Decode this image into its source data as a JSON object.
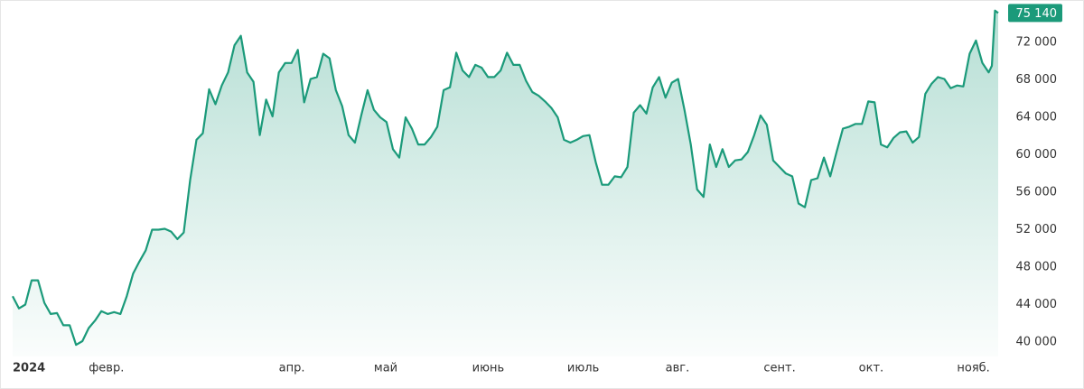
{
  "chart_data": {
    "type": "line",
    "color": "#1b9a7a",
    "fill": true,
    "grid": false,
    "x": [
      7,
      9,
      11,
      13,
      15,
      17,
      19,
      21,
      23,
      25,
      27,
      29,
      31,
      33,
      35,
      37,
      39,
      41,
      43,
      45,
      47,
      49,
      51,
      53,
      55,
      57,
      59,
      61,
      63,
      65,
      67,
      69,
      71,
      73,
      75,
      77,
      79,
      81,
      83,
      85,
      87,
      89,
      91,
      93,
      95,
      97,
      99,
      101,
      103,
      105,
      107,
      109,
      111,
      113,
      115,
      117,
      119,
      121,
      123,
      125,
      127,
      129,
      131,
      133,
      135,
      137,
      139,
      141,
      143,
      145,
      147,
      149,
      151,
      153,
      155,
      157,
      159,
      161,
      163,
      165,
      167,
      169,
      171,
      173,
      175,
      177,
      179,
      181,
      183,
      185,
      187,
      189,
      191,
      193,
      195,
      197,
      199,
      201,
      203,
      205,
      207,
      209,
      211,
      213,
      215,
      217,
      219,
      221,
      223,
      225,
      227,
      229,
      231,
      233,
      235,
      237,
      239,
      241,
      243,
      245,
      247,
      249,
      251,
      253,
      255,
      257,
      259,
      261,
      263,
      265,
      267,
      269,
      271,
      273,
      275,
      277,
      279,
      281,
      283,
      285,
      287,
      289,
      291,
      293,
      295,
      297,
      299,
      301,
      303,
      305,
      307,
      309,
      311,
      313,
      315,
      316,
      317,
      318
    ],
    "values": [
      44900,
      43600,
      44000,
      46600,
      46600,
      44200,
      43000,
      43100,
      41800,
      41800,
      39700,
      40100,
      41500,
      42300,
      43300,
      43000,
      43200,
      43000,
      44900,
      47300,
      48600,
      49800,
      52000,
      52000,
      52100,
      51800,
      51000,
      51700,
      57300,
      61600,
      62300,
      67000,
      65400,
      67400,
      68800,
      71700,
      72700,
      68800,
      67800,
      62100,
      65900,
      64100,
      68800,
      69800,
      69800,
      71200,
      65600,
      68100,
      68300,
      70800,
      70300,
      66900,
      65200,
      62100,
      61300,
      64200,
      66900,
      64800,
      64000,
      63500,
      60600,
      59700,
      64000,
      62800,
      61100,
      61100,
      61900,
      63000,
      66900,
      67200,
      70900,
      69000,
      68300,
      69600,
      69300,
      68300,
      68300,
      69000,
      70900,
      69600,
      69600,
      67900,
      66700,
      66300,
      65700,
      65000,
      64000,
      61600,
      61300,
      61600,
      62000,
      62100,
      59200,
      56800,
      56800,
      57700,
      57600,
      58700,
      64500,
      65300,
      64400,
      67200,
      68300,
      66100,
      67700,
      68100,
      64800,
      61100,
      56300,
      55500,
      61100,
      58700,
      60600,
      58700,
      59400,
      59500,
      60300,
      62100,
      64200,
      63200,
      59400,
      58700,
      58000,
      57700,
      54800,
      54400,
      57300,
      57500,
      59700,
      57700,
      60300,
      62800,
      63000,
      63300,
      63300,
      65700,
      65600,
      61100,
      60800,
      61800,
      62400,
      62500,
      61300,
      61900,
      66500,
      67600,
      68300,
      68100,
      67100,
      67400,
      67300,
      70800,
      72200,
      69800,
      68800,
      69500,
      75400,
      75140
    ],
    "value_labels": [
      null,
      null,
      null,
      null,
      null,
      null,
      null,
      null,
      null,
      null,
      null,
      null,
      null,
      null,
      null,
      null,
      null,
      null,
      null,
      null,
      null,
      null,
      null,
      null,
      null,
      null,
      null,
      null,
      null,
      null,
      null,
      null,
      null,
      null,
      null,
      null,
      null,
      null,
      null,
      null,
      null,
      null,
      null,
      null,
      null,
      null,
      null,
      null,
      null,
      null,
      null,
      null,
      null,
      null,
      null,
      null,
      null,
      null,
      null,
      null,
      null,
      null,
      null,
      null,
      null,
      null,
      null,
      null,
      null,
      null,
      null,
      null,
      null,
      null,
      null,
      null,
      null,
      null,
      null,
      null,
      null,
      null,
      null,
      null,
      null,
      null,
      null,
      null,
      null,
      null,
      null,
      null,
      null,
      null,
      null,
      null,
      null,
      null,
      null,
      null,
      null,
      null,
      null,
      null,
      null,
      null,
      null,
      null,
      null,
      null,
      null,
      null,
      null,
      null,
      null,
      null,
      null,
      null,
      null,
      null,
      null,
      null,
      null,
      null,
      null,
      null,
      null,
      null,
      null,
      null,
      null,
      null,
      null,
      null,
      null,
      null,
      null,
      null,
      null,
      null,
      null,
      null,
      null,
      null,
      null,
      null,
      null,
      null,
      null,
      null,
      null,
      null,
      null,
      null,
      null,
      null,
      null,
      "75 140"
    ],
    "xlim": [
      7,
      318
    ],
    "xticks": [
      {
        "value": 7,
        "label": "2024"
      },
      {
        "value": 31,
        "label": "февр."
      },
      {
        "value": 91,
        "label": "апр."
      },
      {
        "value": 121,
        "label": "май"
      },
      {
        "value": 152,
        "label": "июнь"
      },
      {
        "value": 182,
        "label": "июль"
      },
      {
        "value": 213,
        "label": "авг."
      },
      {
        "value": 244,
        "label": "сент."
      },
      {
        "value": 274,
        "label": "окт."
      },
      {
        "value": 305,
        "label": "нояб."
      }
    ],
    "ylim": [
      38500,
      76000
    ],
    "yticks": [
      {
        "value": 40000,
        "label": "40 000"
      },
      {
        "value": 44000,
        "label": "44 000"
      },
      {
        "value": 48000,
        "label": "48 000"
      },
      {
        "value": 52000,
        "label": "52 000"
      },
      {
        "value": 56000,
        "label": "56 000"
      },
      {
        "value": 60000,
        "label": "60 000"
      },
      {
        "value": 64000,
        "label": "64 000"
      },
      {
        "value": 68000,
        "label": "68 000"
      },
      {
        "value": 72000,
        "label": "72 000"
      }
    ]
  }
}
